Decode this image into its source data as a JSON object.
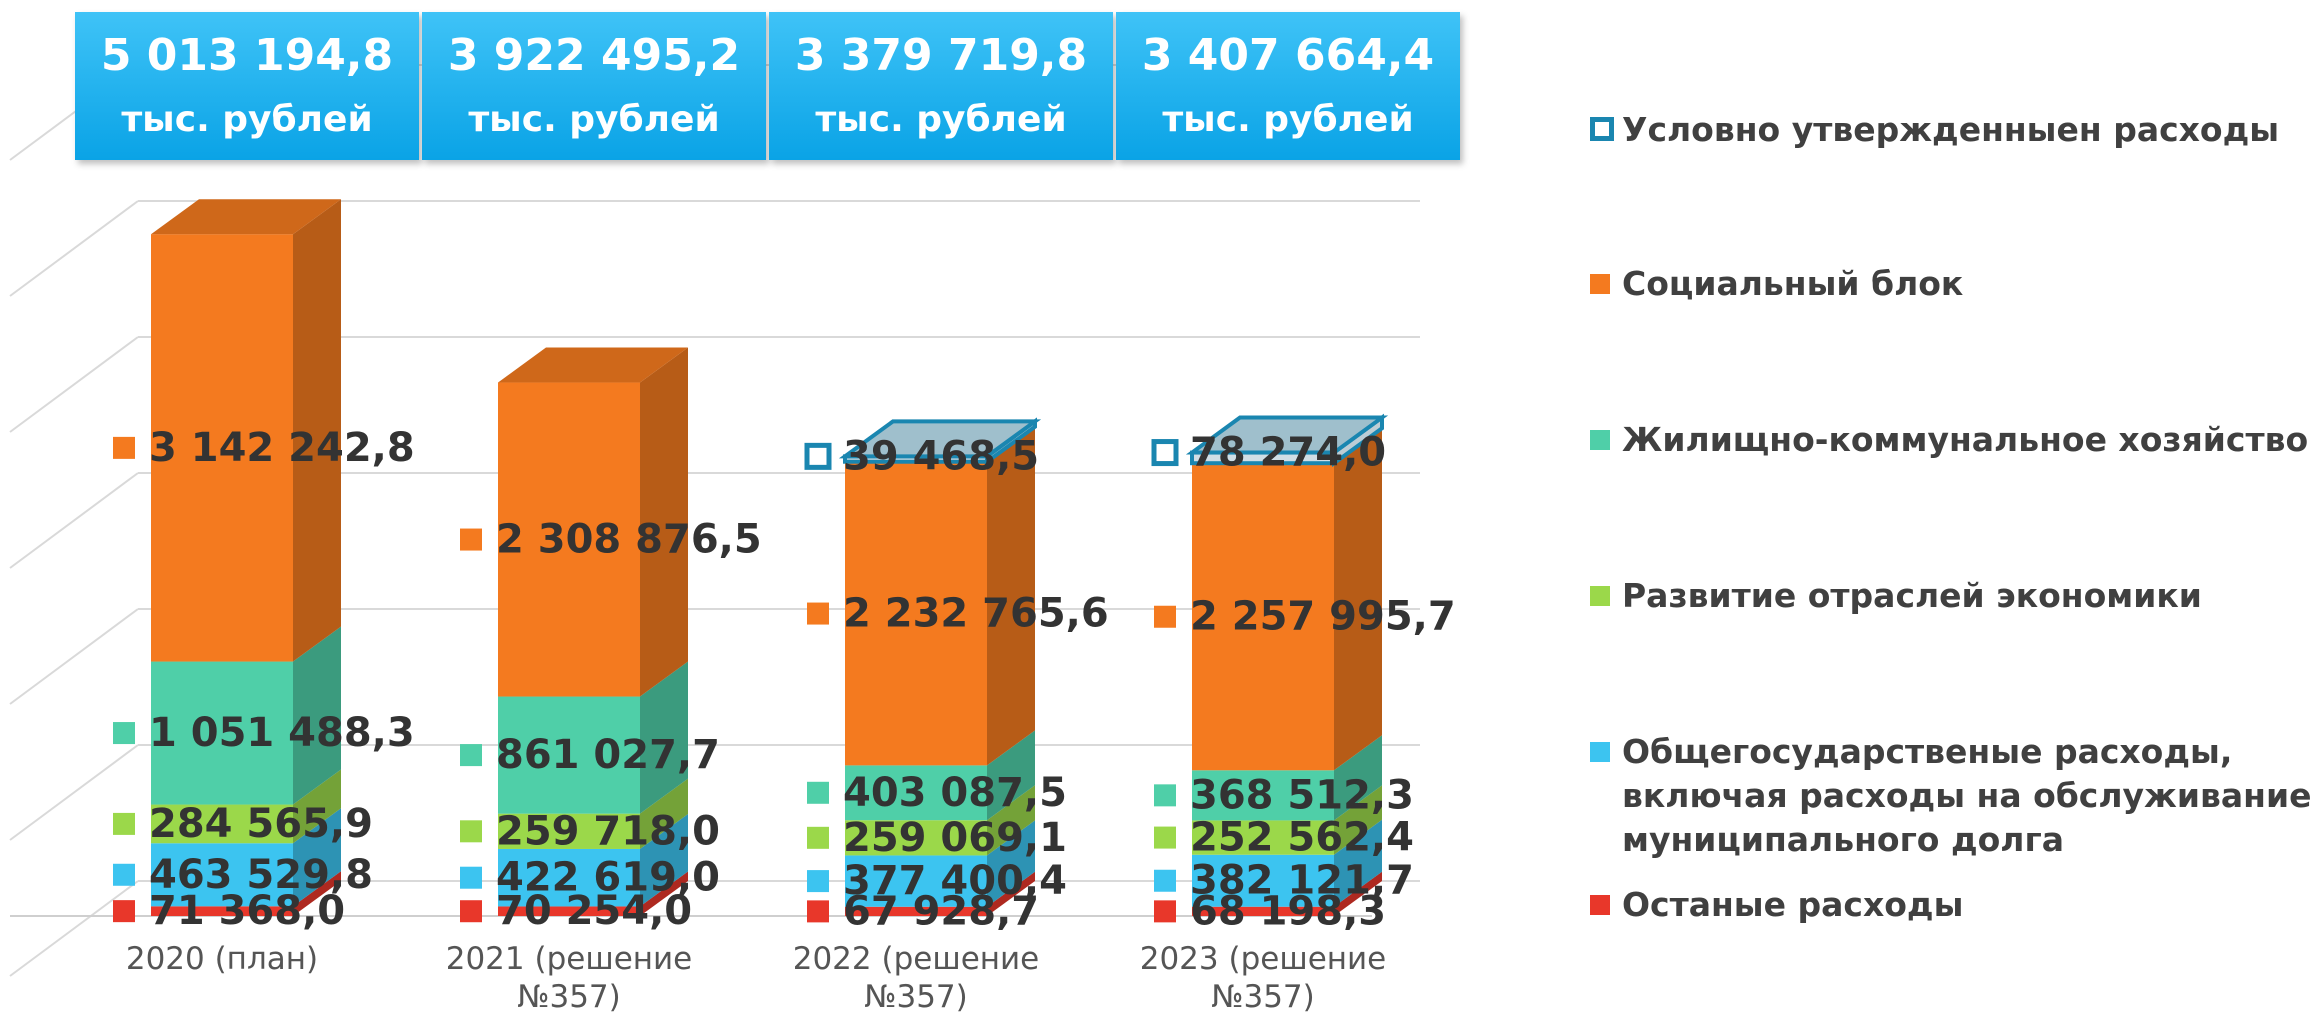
{
  "chart_data": {
    "type": "bar3d_stacked",
    "categories": [
      "2020 (план)",
      "2021 (решение №357)",
      "2022 (решение №357)",
      "2023 (решение №357)"
    ],
    "series": [
      {
        "name": "Останые расходы",
        "color": "#e8372a",
        "values": [
          71368.0,
          70254.0,
          67928.7,
          68198.3
        ],
        "value_labels": [
          "71 368,0",
          "70 254,0",
          "67 928,7",
          "68 198,3"
        ]
      },
      {
        "name": "Общегосударственые расходы, включая расходы на обслуживание муниципального долга",
        "color": "#3cc4f0",
        "values": [
          463529.8,
          422619.0,
          377400.4,
          382121.7
        ],
        "value_labels": [
          "463 529,8",
          "422 619,0",
          "377 400,4",
          "382 121,7"
        ]
      },
      {
        "name": "Развитие отраслей экономики",
        "color": "#9bd84a",
        "values": [
          284565.9,
          259718.0,
          259069.1,
          252562.4
        ],
        "value_labels": [
          "284 565,9",
          "259 718,0",
          "259 069,1",
          "252 562,4"
        ]
      },
      {
        "name": "Жилищно-коммунальное хозяйство",
        "color": "#4fcfa8",
        "values": [
          1051488.3,
          861027.7,
          403087.5,
          368512.3
        ],
        "value_labels": [
          "1 051 488,3",
          "861 027,7",
          "403 087,5",
          "368 512,3"
        ]
      },
      {
        "name": "Социальный блок",
        "color": "#f47a1f",
        "values": [
          3142242.8,
          2308876.5,
          2232765.6,
          2257995.7
        ],
        "value_labels": [
          "3 142 242,8",
          "2 308 876,5",
          "2 232 765,6",
          "2 257 995,7"
        ]
      },
      {
        "name": "Условно утвержденныен расходы",
        "color": "#1a86b0",
        "values": [
          null,
          null,
          39468.5,
          78274.0
        ],
        "value_labels": [
          null,
          null,
          "39 468,5",
          "78 274,0"
        ]
      }
    ],
    "totals": {
      "values": [
        5013194.8,
        3922495.2,
        3379719.8,
        3407664.4
      ],
      "value_labels": [
        "5 013 194,8",
        "3 922 495,2",
        "3 379 719,8",
        "3 407 664,4"
      ],
      "unit": "тыс. рублей"
    },
    "ylim": [
      0,
      6000000
    ],
    "yticks": [
      0,
      1000000,
      2000000,
      3000000,
      4000000,
      5000000,
      6000000
    ],
    "grid": true
  }
}
